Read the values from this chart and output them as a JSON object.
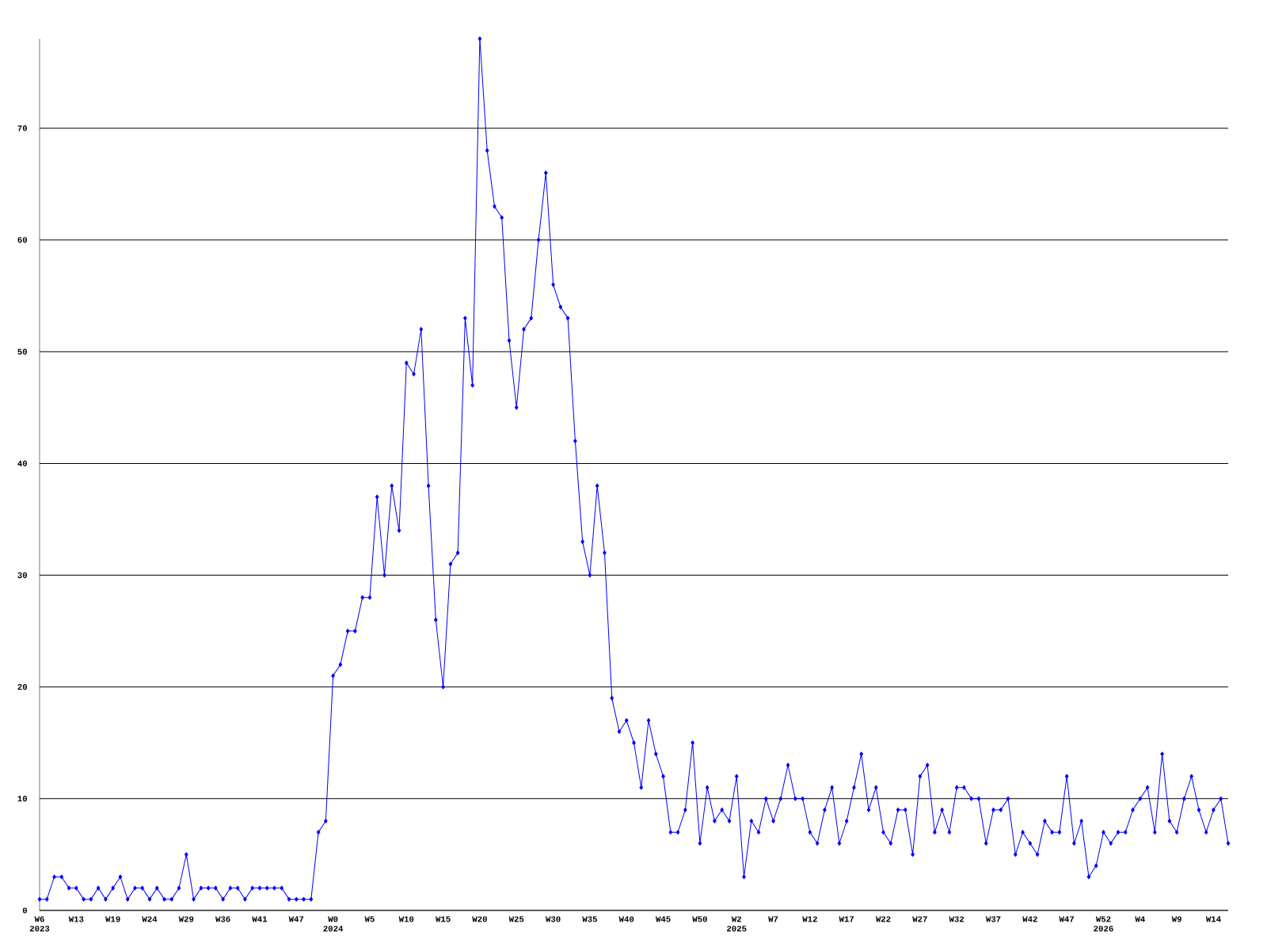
{
  "chart_data": {
    "type": "line",
    "categories": [
      "W6 2023",
      null,
      null,
      null,
      null,
      "W13",
      null,
      null,
      null,
      null,
      "W19",
      null,
      null,
      null,
      null,
      "W24",
      null,
      null,
      null,
      null,
      "W29",
      null,
      null,
      null,
      null,
      "W36",
      null,
      null,
      null,
      null,
      "W41",
      null,
      null,
      null,
      null,
      "W47",
      null,
      null,
      null,
      null,
      "W0 2024",
      null,
      null,
      null,
      null,
      "W5",
      null,
      null,
      null,
      null,
      "W10",
      null,
      null,
      null,
      null,
      "W15",
      null,
      null,
      null,
      null,
      "W20",
      null,
      null,
      null,
      null,
      "W25",
      null,
      null,
      null,
      null,
      "W30",
      null,
      null,
      null,
      null,
      "W35",
      null,
      null,
      null,
      null,
      "W40",
      null,
      null,
      null,
      null,
      "W45",
      null,
      null,
      null,
      null,
      "W50",
      null,
      null,
      null,
      null,
      "W2 2025",
      null,
      null,
      null,
      null,
      "W7",
      null,
      null,
      null,
      null,
      "W12",
      null,
      null,
      null,
      null,
      "W17",
      null,
      null,
      null,
      null,
      "W22",
      null,
      null,
      null,
      null,
      "W27",
      null,
      null,
      null,
      null,
      "W32",
      null,
      null,
      null,
      null,
      "W37",
      null,
      null,
      null,
      null,
      "W42",
      null,
      null,
      null,
      null,
      "W47",
      null,
      null,
      null,
      null,
      "W52 2026",
      null,
      null,
      null,
      null,
      "W4",
      null,
      null,
      null,
      null,
      "W9",
      null,
      null,
      null,
      null,
      "W14",
      null,
      null
    ],
    "values": [
      1,
      1,
      3,
      3,
      2,
      2,
      1,
      1,
      2,
      1,
      2,
      3,
      1,
      2,
      2,
      1,
      2,
      1,
      1,
      2,
      5,
      1,
      2,
      2,
      2,
      1,
      2,
      2,
      1,
      2,
      2,
      2,
      2,
      2,
      1,
      1,
      1,
      1,
      7,
      8,
      21,
      22,
      25,
      25,
      28,
      28,
      37,
      30,
      38,
      34,
      49,
      48,
      52,
      38,
      26,
      20,
      31,
      32,
      53,
      47,
      78,
      68,
      63,
      62,
      51,
      45,
      52,
      53,
      60,
      66,
      56,
      54,
      53,
      42,
      33,
      30,
      38,
      32,
      19,
      16,
      17,
      15,
      11,
      17,
      14,
      12,
      7,
      7,
      9,
      15,
      6,
      11,
      8,
      9,
      8,
      12,
      3,
      8,
      7,
      10,
      8,
      10,
      13,
      10,
      10,
      7,
      6,
      9,
      11,
      6,
      8,
      11,
      14,
      9,
      11,
      7,
      6,
      9,
      9,
      5,
      12,
      13,
      7,
      9,
      7,
      11,
      11,
      10,
      10,
      6,
      9,
      9,
      10,
      5,
      7,
      6,
      5,
      8,
      7,
      7,
      12,
      6,
      8,
      3,
      4,
      7,
      6,
      7,
      7,
      9,
      10,
      11,
      7,
      14,
      8,
      7,
      10,
      12,
      9,
      7,
      9,
      10,
      6
    ],
    "color": "#0000ff",
    "marker": "diamond",
    "grid": "y",
    "ylim": [
      0,
      78
    ],
    "yticks": [
      0,
      10,
      20,
      30,
      40,
      50,
      60,
      70
    ]
  }
}
